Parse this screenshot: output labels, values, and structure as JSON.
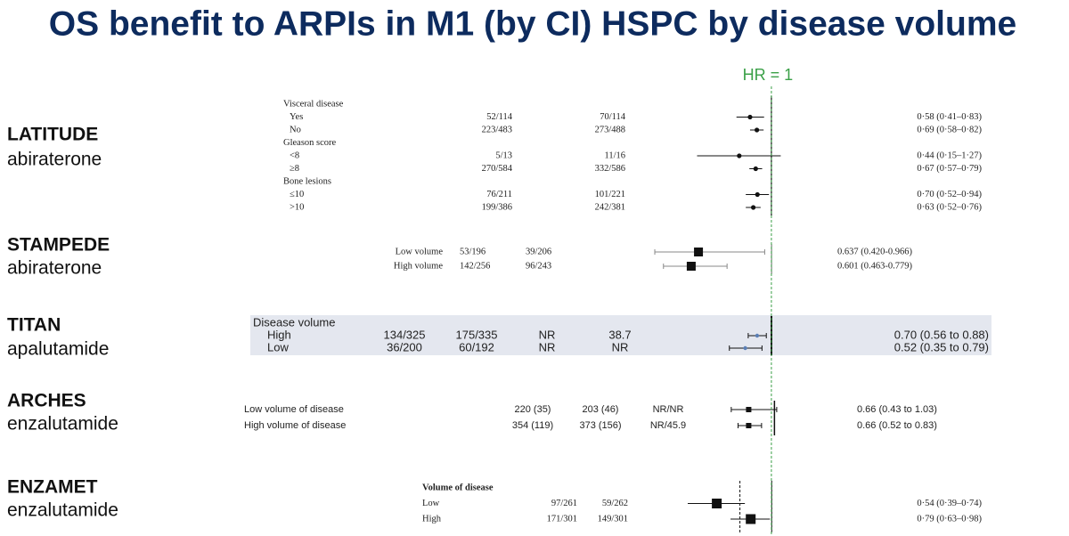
{
  "title": "OS benefit to ARPIs in M1 (by CI) HSPC by disease volume",
  "reference_line": {
    "label": "HR = 1",
    "value": 1,
    "color": "#3aa047"
  },
  "chart_data": [
    {
      "type": "forest",
      "study": "LATITUDE",
      "drug": "abiraterone",
      "xscale": "log",
      "xlim": [
        0.023,
        2.17
      ],
      "marker": "dot",
      "color": "#111",
      "rows": [
        {
          "label": "Visceral disease"
        },
        {
          "label": "Yes",
          "columns": [
            "52/114",
            "70/114"
          ],
          "hr": 0.58,
          "lo": 0.41,
          "hi": 0.83,
          "value_label": "0·58 (0·41–0·83)"
        },
        {
          "label": "No",
          "columns": [
            "223/483",
            "273/488"
          ],
          "hr": 0.69,
          "lo": 0.58,
          "hi": 0.82,
          "value_label": "0·69 (0·58–0·82)"
        },
        {
          "label": "Gleason score"
        },
        {
          "label": "<8",
          "columns": [
            "5/13",
            "11/16"
          ],
          "hr": 0.44,
          "lo": 0.15,
          "hi": 1.27,
          "value_label": "0·44 (0·15–1·27)"
        },
        {
          "label": "≥8",
          "columns": [
            "270/584",
            "332/586"
          ],
          "hr": 0.67,
          "lo": 0.57,
          "hi": 0.79,
          "value_label": "0·67 (0·57–0·79)"
        },
        {
          "label": "Bone lesions"
        },
        {
          "label": "≤10",
          "columns": [
            "76/211",
            "101/221"
          ],
          "hr": 0.7,
          "lo": 0.52,
          "hi": 0.94,
          "value_label": "0·70 (0·52–0·94)"
        },
        {
          "label": ">10",
          "columns": [
            "199/386",
            "242/381"
          ],
          "hr": 0.63,
          "lo": 0.52,
          "hi": 0.76,
          "value_label": "0·63 (0·52–0·76)"
        }
      ]
    },
    {
      "type": "forest",
      "study": "STAMPEDE",
      "drug": "abiraterone",
      "xscale": "linear",
      "xlim": [
        0.265,
        1.15
      ],
      "marker": "square",
      "color": "#111",
      "rows": [
        {
          "label": "Low volume",
          "columns": [
            "53/196",
            "39/206"
          ],
          "hr": 0.637,
          "lo": 0.42,
          "hi": 0.966,
          "value_label": "0.637 (0.420-0.966)"
        },
        {
          "label": "High volume",
          "columns": [
            "142/256",
            "96/243"
          ],
          "hr": 0.601,
          "lo": 0.463,
          "hi": 0.779,
          "value_label": "0.601 (0.463-0.779)"
        }
      ]
    },
    {
      "type": "forest",
      "study": "TITAN",
      "drug": "apalutamide",
      "xscale": "log",
      "xlim": [
        0.025,
        2.13
      ],
      "marker": "circle",
      "color": "#5b7fb5",
      "rows": [
        {
          "label": "Disease volume"
        },
        {
          "label": "High",
          "columns": [
            "134/325",
            "175/335",
            "NR",
            "38.7"
          ],
          "hr": 0.7,
          "lo": 0.56,
          "hi": 0.88,
          "value_label": "0.70 (0.56 to 0.88)"
        },
        {
          "label": "Low",
          "columns": [
            "36/200",
            "60/192",
            "NR",
            "NR"
          ],
          "hr": 0.52,
          "lo": 0.35,
          "hi": 0.79,
          "value_label": "0.52 (0.35 to 0.79)"
        }
      ]
    },
    {
      "type": "forest",
      "study": "ARCHES",
      "drug": "enzalutamide",
      "xscale": "linear",
      "xlim": [
        -0.99,
        1.36
      ],
      "marker": "square",
      "color": "#111",
      "rows": [
        {
          "label": "Low volume of disease",
          "columns": [
            "220 (35)",
            "203 (46)",
            "NR/NR"
          ],
          "hr": 0.66,
          "lo": 0.43,
          "hi": 1.03,
          "value_label": "0.66 (0.43 to 1.03)"
        },
        {
          "label": "High volume of disease",
          "columns": [
            "354 (119)",
            "373 (156)",
            "NR/45.9"
          ],
          "hr": 0.66,
          "lo": 0.52,
          "hi": 0.83,
          "value_label": "0.66 (0.52 to 0.83)"
        }
      ]
    },
    {
      "type": "forest",
      "study": "ENZAMET",
      "drug": "enzalutamide",
      "xscale": "log",
      "xlim": [
        0.19,
        1.4
      ],
      "marker": "square",
      "color": "#111",
      "summary_line": 0.7,
      "rows": [
        {
          "label": "Volume of disease"
        },
        {
          "label": "Low",
          "columns": [
            "97/261",
            "59/262"
          ],
          "hr": 0.54,
          "lo": 0.39,
          "hi": 0.74,
          "value_label": "0·54 (0·39–0·74)"
        },
        {
          "label": "High",
          "columns": [
            "171/301",
            "149/301"
          ],
          "hr": 0.79,
          "lo": 0.63,
          "hi": 0.98,
          "value_label": "0·79 (0·63–0·98)"
        }
      ]
    }
  ]
}
